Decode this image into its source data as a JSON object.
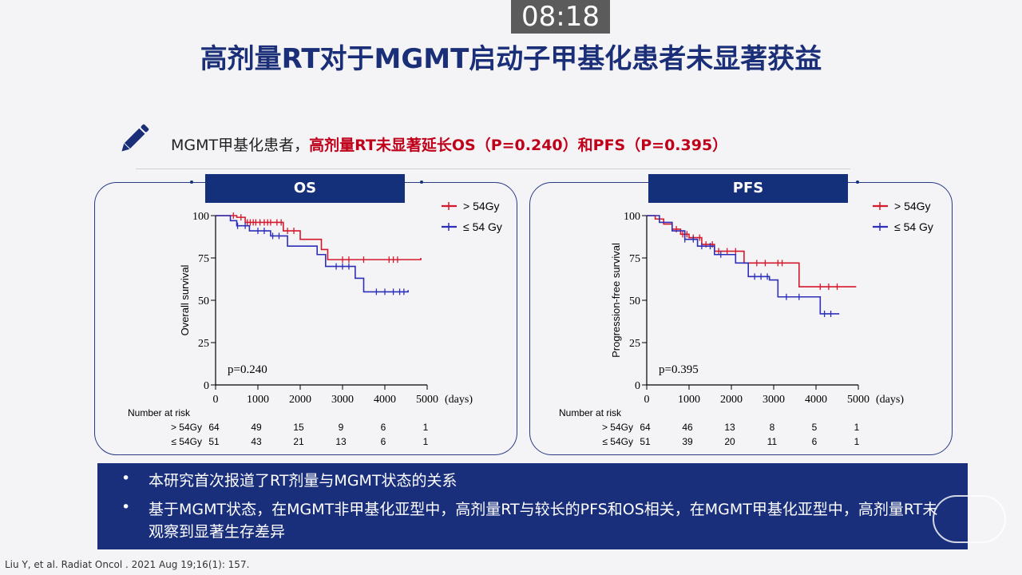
{
  "timer": "08:18",
  "title": "高剂量RT对于MGMT启动子甲基化患者未显著获益",
  "summary": {
    "prefix": "MGMT甲基化患者，",
    "highlight": "高剂量RT未显著延长OS（P=0.240）和PFS（P=0.395）"
  },
  "colors": {
    "high_dose": "#d4192c",
    "low_dose": "#2d2fb8",
    "navy": "#15307a"
  },
  "chart_data": [
    {
      "type": "line",
      "panel_title": "OS",
      "ylabel": "Overall survival",
      "xlabel": "(days)",
      "xlim": [
        0,
        5000
      ],
      "ylim": [
        0,
        100
      ],
      "xticks": [
        0,
        1000,
        2000,
        3000,
        4000,
        5000
      ],
      "yticks": [
        0,
        25,
        50,
        75,
        100
      ],
      "annotation": "p=0.240",
      "legend_position": "top-right",
      "series": [
        {
          "name": "> 54Gy",
          "color": "#d4192c",
          "x": [
            0,
            250,
            500,
            700,
            1600,
            2000,
            2500,
            2650,
            4850
          ],
          "y": [
            100,
            100,
            99,
            96,
            91,
            86,
            80,
            74,
            75
          ],
          "censor_x": [
            420,
            600,
            750,
            820,
            890,
            950,
            1050,
            1150,
            1230,
            1300,
            1450,
            1550,
            1700,
            1850,
            3000,
            3150,
            3500,
            4100,
            4200,
            4300
          ]
        },
        {
          "name": "≤ 54 Gy",
          "color": "#2d2fb8",
          "x": [
            0,
            350,
            500,
            800,
            1300,
            1700,
            2400,
            2600,
            3300,
            3500,
            4550
          ],
          "y": [
            100,
            97,
            94,
            91,
            88,
            82,
            77,
            70,
            63,
            55,
            56
          ],
          "censor_x": [
            520,
            700,
            1000,
            1150,
            1350,
            1500,
            2850,
            3000,
            3150,
            3800,
            4000,
            4200,
            4350,
            4450
          ]
        }
      ],
      "risk_table": {
        "label": "Number at risk",
        "x": [
          0,
          1000,
          2000,
          3000,
          4000,
          5000
        ],
        "rows": [
          {
            "label": "> 54Gy",
            "values": [
              "64",
              "49",
              "15",
              "9",
              "6",
              "1"
            ]
          },
          {
            "label": "≤ 54Gy",
            "values": [
              "51",
              "43",
              "21",
              "13",
              "6",
              "1"
            ]
          }
        ]
      }
    },
    {
      "type": "line",
      "panel_title": "PFS",
      "ylabel": "Progression-free survival",
      "xlabel": "(days)",
      "xlim": [
        0,
        5000
      ],
      "ylim": [
        0,
        100
      ],
      "xticks": [
        0,
        1000,
        2000,
        3000,
        4000,
        5000
      ],
      "yticks": [
        0,
        25,
        50,
        75,
        100
      ],
      "annotation": "p=0.395",
      "legend_position": "top-right",
      "series": [
        {
          "name": "> 54Gy",
          "color": "#d4192c",
          "x": [
            0,
            200,
            400,
            600,
            800,
            1000,
            1300,
            1600,
            2300,
            3600,
            4950
          ],
          "y": [
            100,
            98,
            95,
            92,
            89,
            87,
            83,
            79,
            72,
            58,
            58
          ],
          "censor_x": [
            700,
            850,
            950,
            1100,
            1250,
            1400,
            1550,
            1700,
            1900,
            2100,
            2600,
            2800,
            3100,
            3200,
            4100,
            4300,
            4500
          ]
        },
        {
          "name": "≤ 54 Gy",
          "color": "#2d2fb8",
          "x": [
            0,
            300,
            600,
            900,
            1200,
            1600,
            2100,
            2400,
            2900,
            3100,
            4100,
            4550
          ],
          "y": [
            100,
            96,
            91,
            86,
            82,
            77,
            72,
            64,
            62,
            52,
            42,
            42
          ],
          "censor_x": [
            900,
            1100,
            1300,
            1500,
            1750,
            2550,
            2700,
            2850,
            3300,
            3600,
            4200,
            4350
          ]
        }
      ],
      "risk_table": {
        "label": "Number at risk",
        "x": [
          0,
          1000,
          2000,
          3000,
          4000,
          5000
        ],
        "rows": [
          {
            "label": "> 54Gy",
            "values": [
              "64",
              "46",
              "13",
              "8",
              "5",
              "1"
            ]
          },
          {
            "label": "≤ 54Gy",
            "values": [
              "51",
              "39",
              "20",
              "11",
              "6",
              "1"
            ]
          }
        ]
      }
    }
  ],
  "bullets": [
    "本研究首次报道了RT剂量与MGMT状态的关系",
    "基于MGMT状态，在MGMT非甲基化亚型中，高剂量RT与较长的PFS和OS相关，在MGMT甲基化亚型中，高剂量RT未观察到显著生存差异"
  ],
  "bullet_symbol": "•",
  "citation": "Liu Y, et al. Radiat Oncol . 2021 Aug 19;16(1): 157."
}
